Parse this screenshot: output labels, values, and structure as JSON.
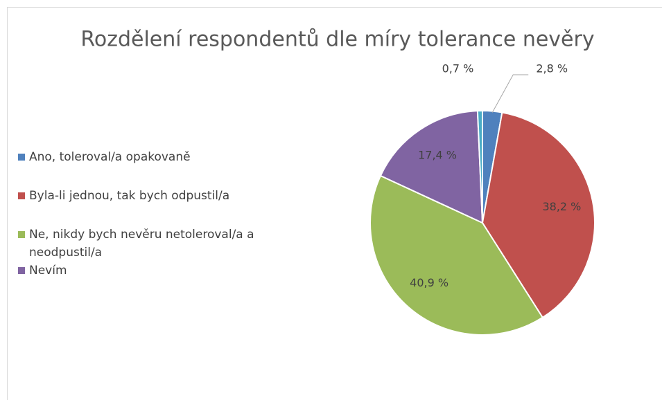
{
  "chart_data": {
    "type": "pie",
    "title": "Rozdělení respondentů dle míry tolerance nevěry",
    "categories": [
      "Ano, toleroval/a opakovaně",
      "Byla-li jednou, tak bych odpustil/a",
      "Ne, nikdy bych nevěru netoleroval/a a neodpustil/a",
      "Nevím",
      null
    ],
    "values": [
      2.8,
      38.2,
      40.9,
      17.4,
      0.7
    ],
    "value_labels": [
      "2,8 %",
      "38,2 %",
      "40,9 %",
      "17,4 %",
      "0,7 %"
    ],
    "colors": [
      "#4f81bd",
      "#c0504d",
      "#9bbb59",
      "#8064a2",
      "#4bacc6"
    ],
    "legend": "left"
  }
}
